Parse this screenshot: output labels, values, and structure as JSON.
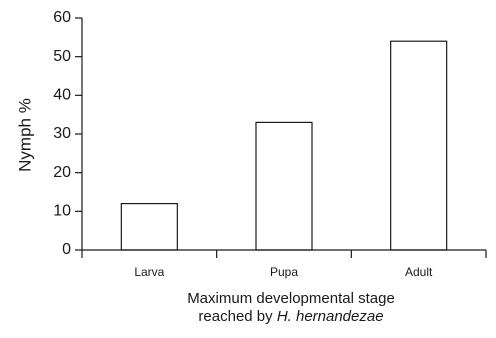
{
  "chart_data": {
    "type": "bar",
    "categories": [
      "Larva",
      "Pupa",
      "Adult"
    ],
    "values": [
      12,
      33,
      54
    ],
    "ylim": [
      0,
      60
    ],
    "yticks": [
      0,
      10,
      20,
      30,
      40,
      50,
      60
    ],
    "ylabel": "Nymph %",
    "xlabel_line1": "Maximum developmental stage",
    "xlabel_line2_prefix": "reached by ",
    "xlabel_line2_species": "H. hernandezae",
    "grid": false,
    "legend": "none",
    "bar_fill": "#ffffff",
    "bar_stroke": "#1a1a1a"
  }
}
